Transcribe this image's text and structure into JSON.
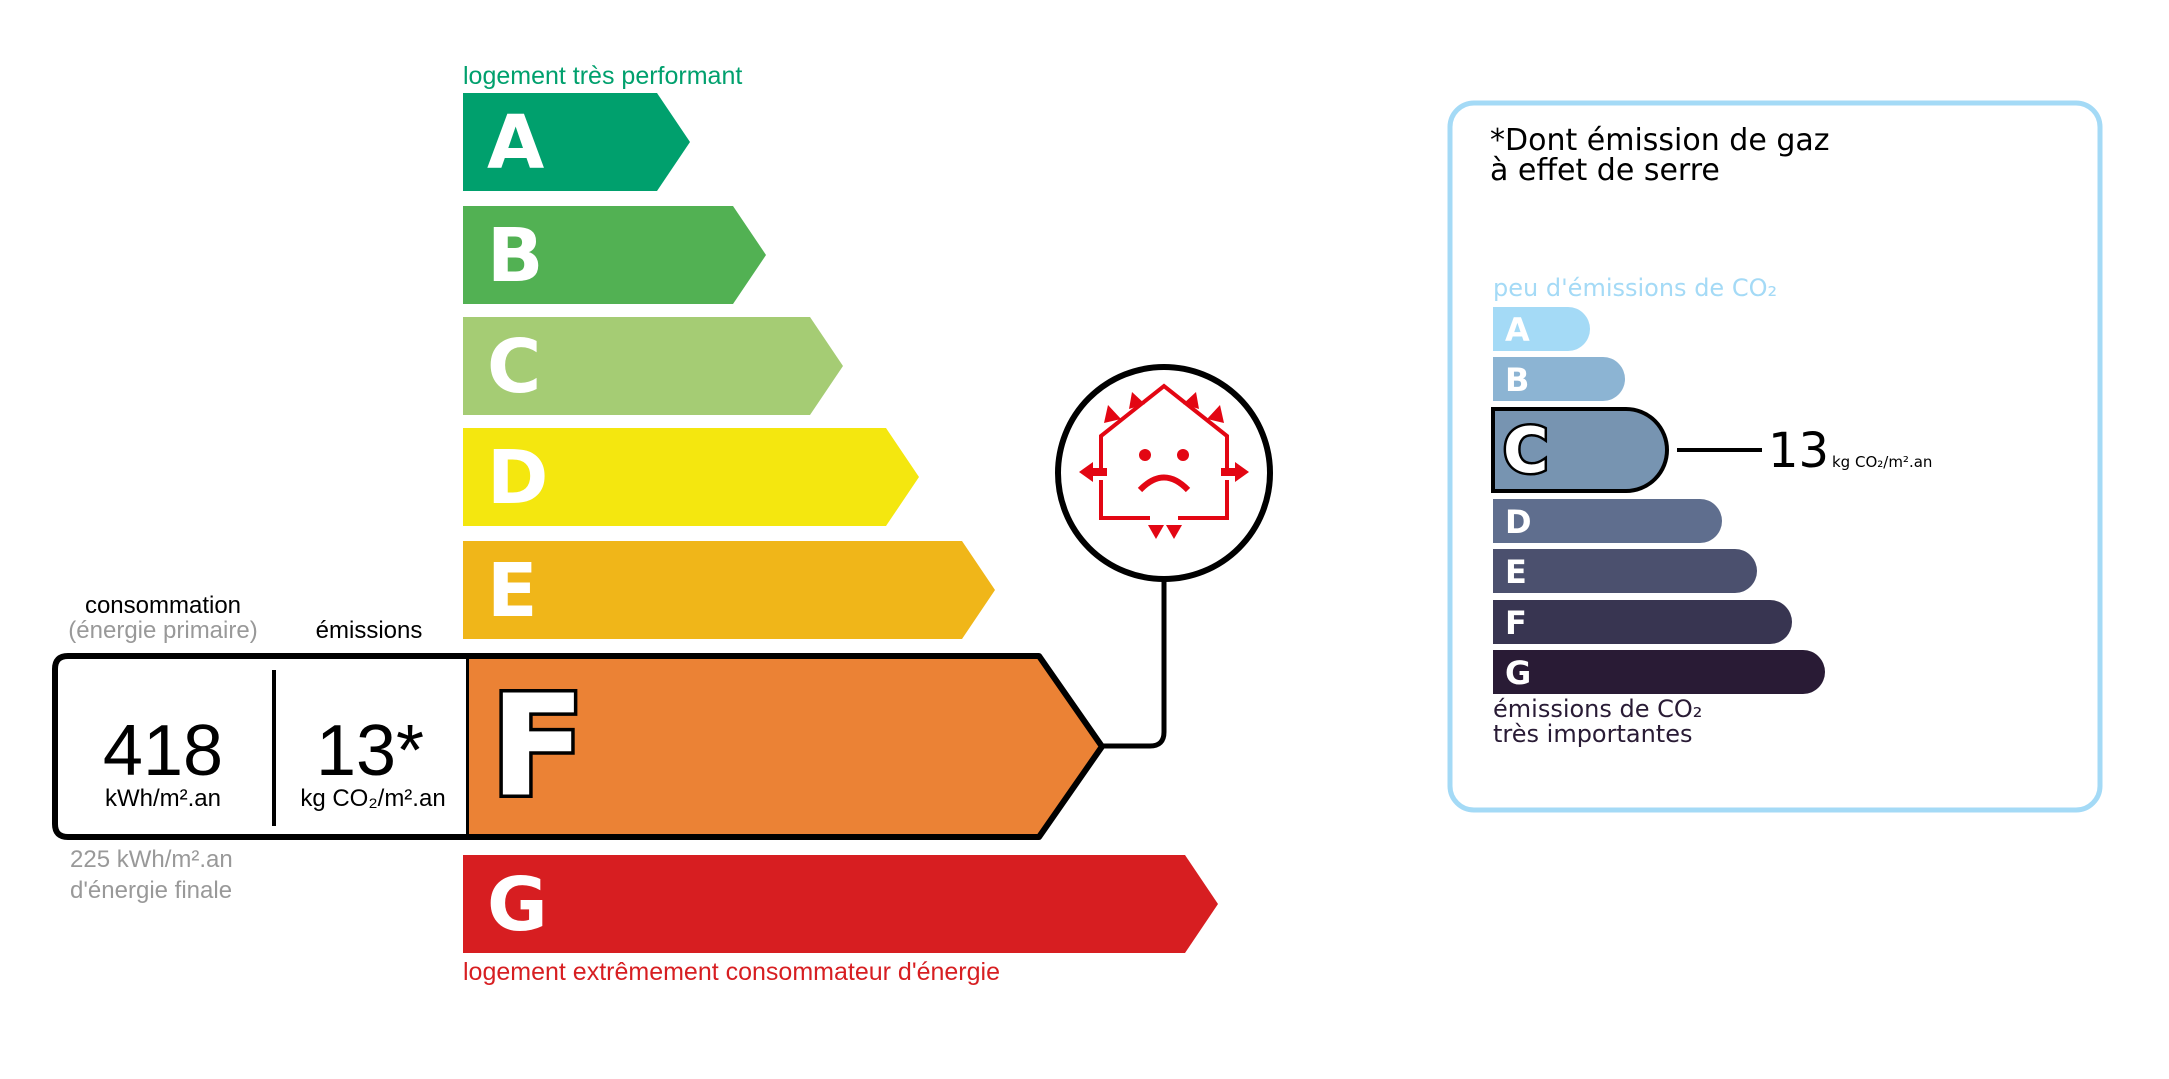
{
  "energy_label": {
    "top_caption": "logement très performant",
    "bottom_caption": "logement extrêmement consommateur d'énergie",
    "classes": [
      {
        "letter": "A",
        "color": "#00A06D"
      },
      {
        "letter": "B",
        "color": "#52B153"
      },
      {
        "letter": "C",
        "color": "#A5CC74"
      },
      {
        "letter": "D",
        "color": "#F4E70F"
      },
      {
        "letter": "E",
        "color": "#F0B619"
      },
      {
        "letter": "F",
        "color": "#EB8235"
      },
      {
        "letter": "G",
        "color": "#D71E21"
      }
    ],
    "current_class": "F",
    "consumption_label": "consommation",
    "consumption_sublabel": "(énergie primaire)",
    "emissions_label": "émissions",
    "consumption_value": "418",
    "consumption_unit": "kWh/m².an",
    "emissions_value": "13*",
    "emissions_unit": "kg CO₂/m².an",
    "final_energy_line1": "225 kWh/m².an",
    "final_energy_line2": "d'énergie finale",
    "icon": "house-poorly-insulated-sad-face-icon"
  },
  "ges_panel": {
    "title_line1": "*Dont émission de gaz",
    "title_line2": "à effet de serre",
    "top_caption": "peu d'émissions de CO₂",
    "bottom_caption_line1": "émissions de CO₂",
    "bottom_caption_line2": "très importantes",
    "border_color": "#A4DAF6",
    "classes": [
      {
        "letter": "A",
        "color": "#A4DAF6"
      },
      {
        "letter": "B",
        "color": "#8CB4D3"
      },
      {
        "letter": "C",
        "color": "#7794B1"
      },
      {
        "letter": "D",
        "color": "#5F6E8E"
      },
      {
        "letter": "E",
        "color": "#4B506E"
      },
      {
        "letter": "F",
        "color": "#383551"
      },
      {
        "letter": "G",
        "color": "#291B35"
      }
    ],
    "current_class": "C",
    "value": "13",
    "unit": "kg CO₂/m².an"
  }
}
